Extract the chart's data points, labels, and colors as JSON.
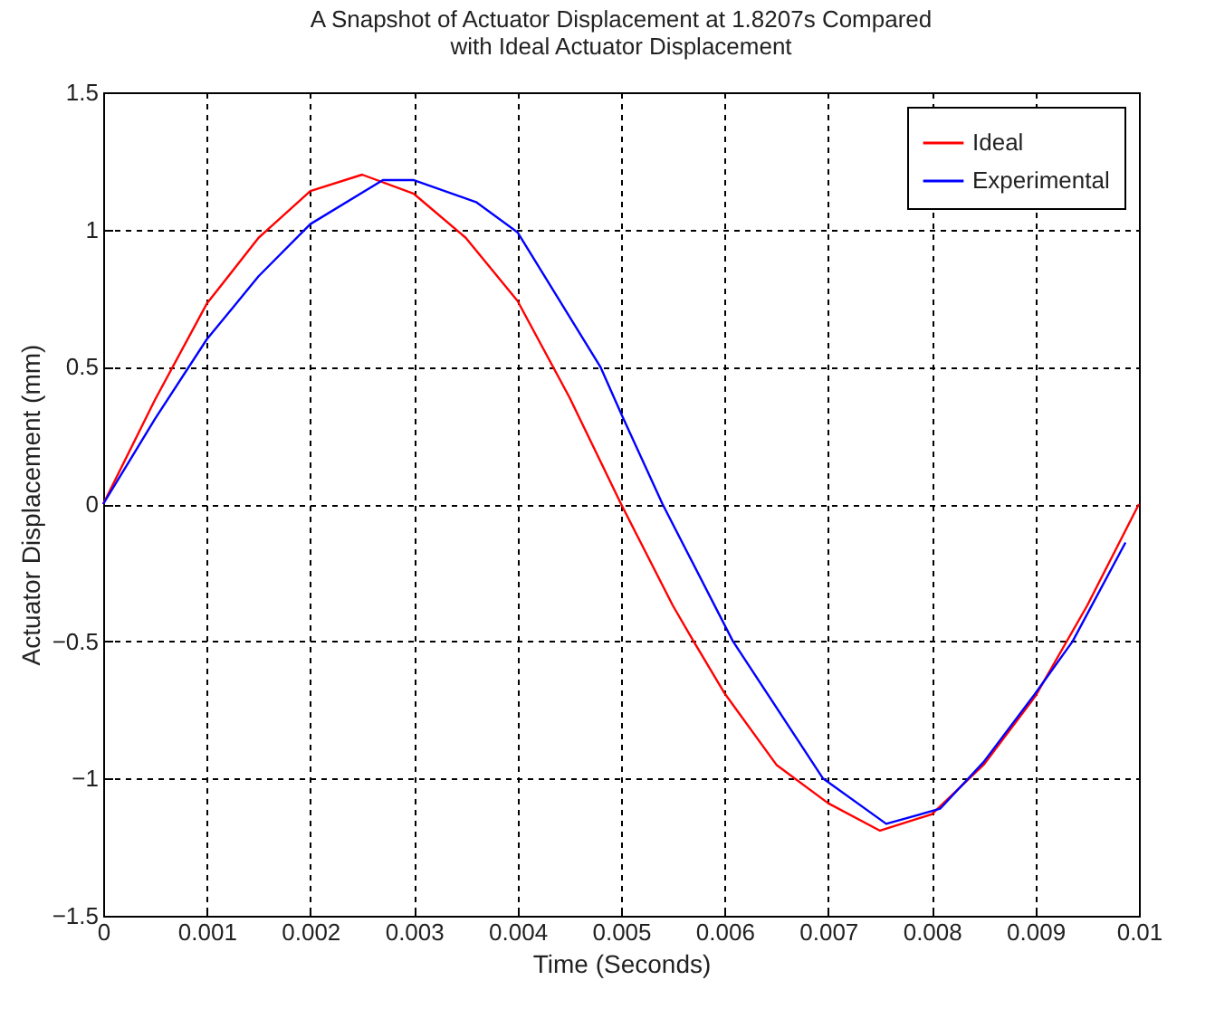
{
  "chart_data": {
    "type": "line",
    "title": "A Snapshot of Actuator Displacement at 1.8207s Compared\nwith Ideal Actuator Displacement",
    "xlabel": "Time (Seconds)",
    "ylabel": "Actuator Displacement (mm)",
    "xlim": [
      0,
      0.01
    ],
    "xticks": [
      0,
      0.001,
      0.002,
      0.003,
      0.004,
      0.005,
      0.006,
      0.007,
      0.008,
      0.009,
      0.01
    ],
    "ylim": [
      -1.5,
      1.5
    ],
    "yticks": [
      -1.5,
      -1,
      -0.5,
      0,
      0.5,
      1,
      1.5
    ],
    "grid": true,
    "legend": "top right",
    "marker": "none",
    "line_style": "solid",
    "series": [
      {
        "name": "Ideal",
        "color": "#ff0000",
        "x": [
          0,
          0.0005,
          0.001,
          0.0015,
          0.002,
          0.0025,
          0.003,
          0.0035,
          0.004,
          0.0045,
          0.005,
          0.0055,
          0.0057,
          0.006,
          0.0065,
          0.007,
          0.0075,
          0.008,
          0.0085,
          0.009,
          0.0095,
          0.01
        ],
        "values": [
          0,
          0.38,
          0.73,
          0.97,
          1.14,
          1.2,
          1.13,
          0.97,
          0.74,
          0.39,
          0,
          -0.37,
          -0.5,
          -0.69,
          -0.95,
          -1.09,
          -1.19,
          -1.13,
          -0.95,
          -0.7,
          -0.37,
          0
        ]
      },
      {
        "name": "Experimental",
        "color": "#0000ff",
        "x": [
          0,
          0.0005,
          0.001,
          0.0015,
          0.002,
          0.0027,
          0.003,
          0.0036,
          0.004,
          0.0048,
          0.005,
          0.0054,
          0.00608,
          0.00695,
          0.00756,
          0.00808,
          0.0085,
          0.00898,
          0.00936,
          0.00987
        ],
        "values": [
          0,
          0.31,
          0.6,
          0.83,
          1.02,
          1.18,
          1.18,
          1.1,
          0.99,
          0.5,
          0.33,
          0,
          -0.5,
          -1,
          -1.165,
          -1.11,
          -0.94,
          -0.7,
          -0.5,
          -0.14
        ]
      }
    ]
  }
}
